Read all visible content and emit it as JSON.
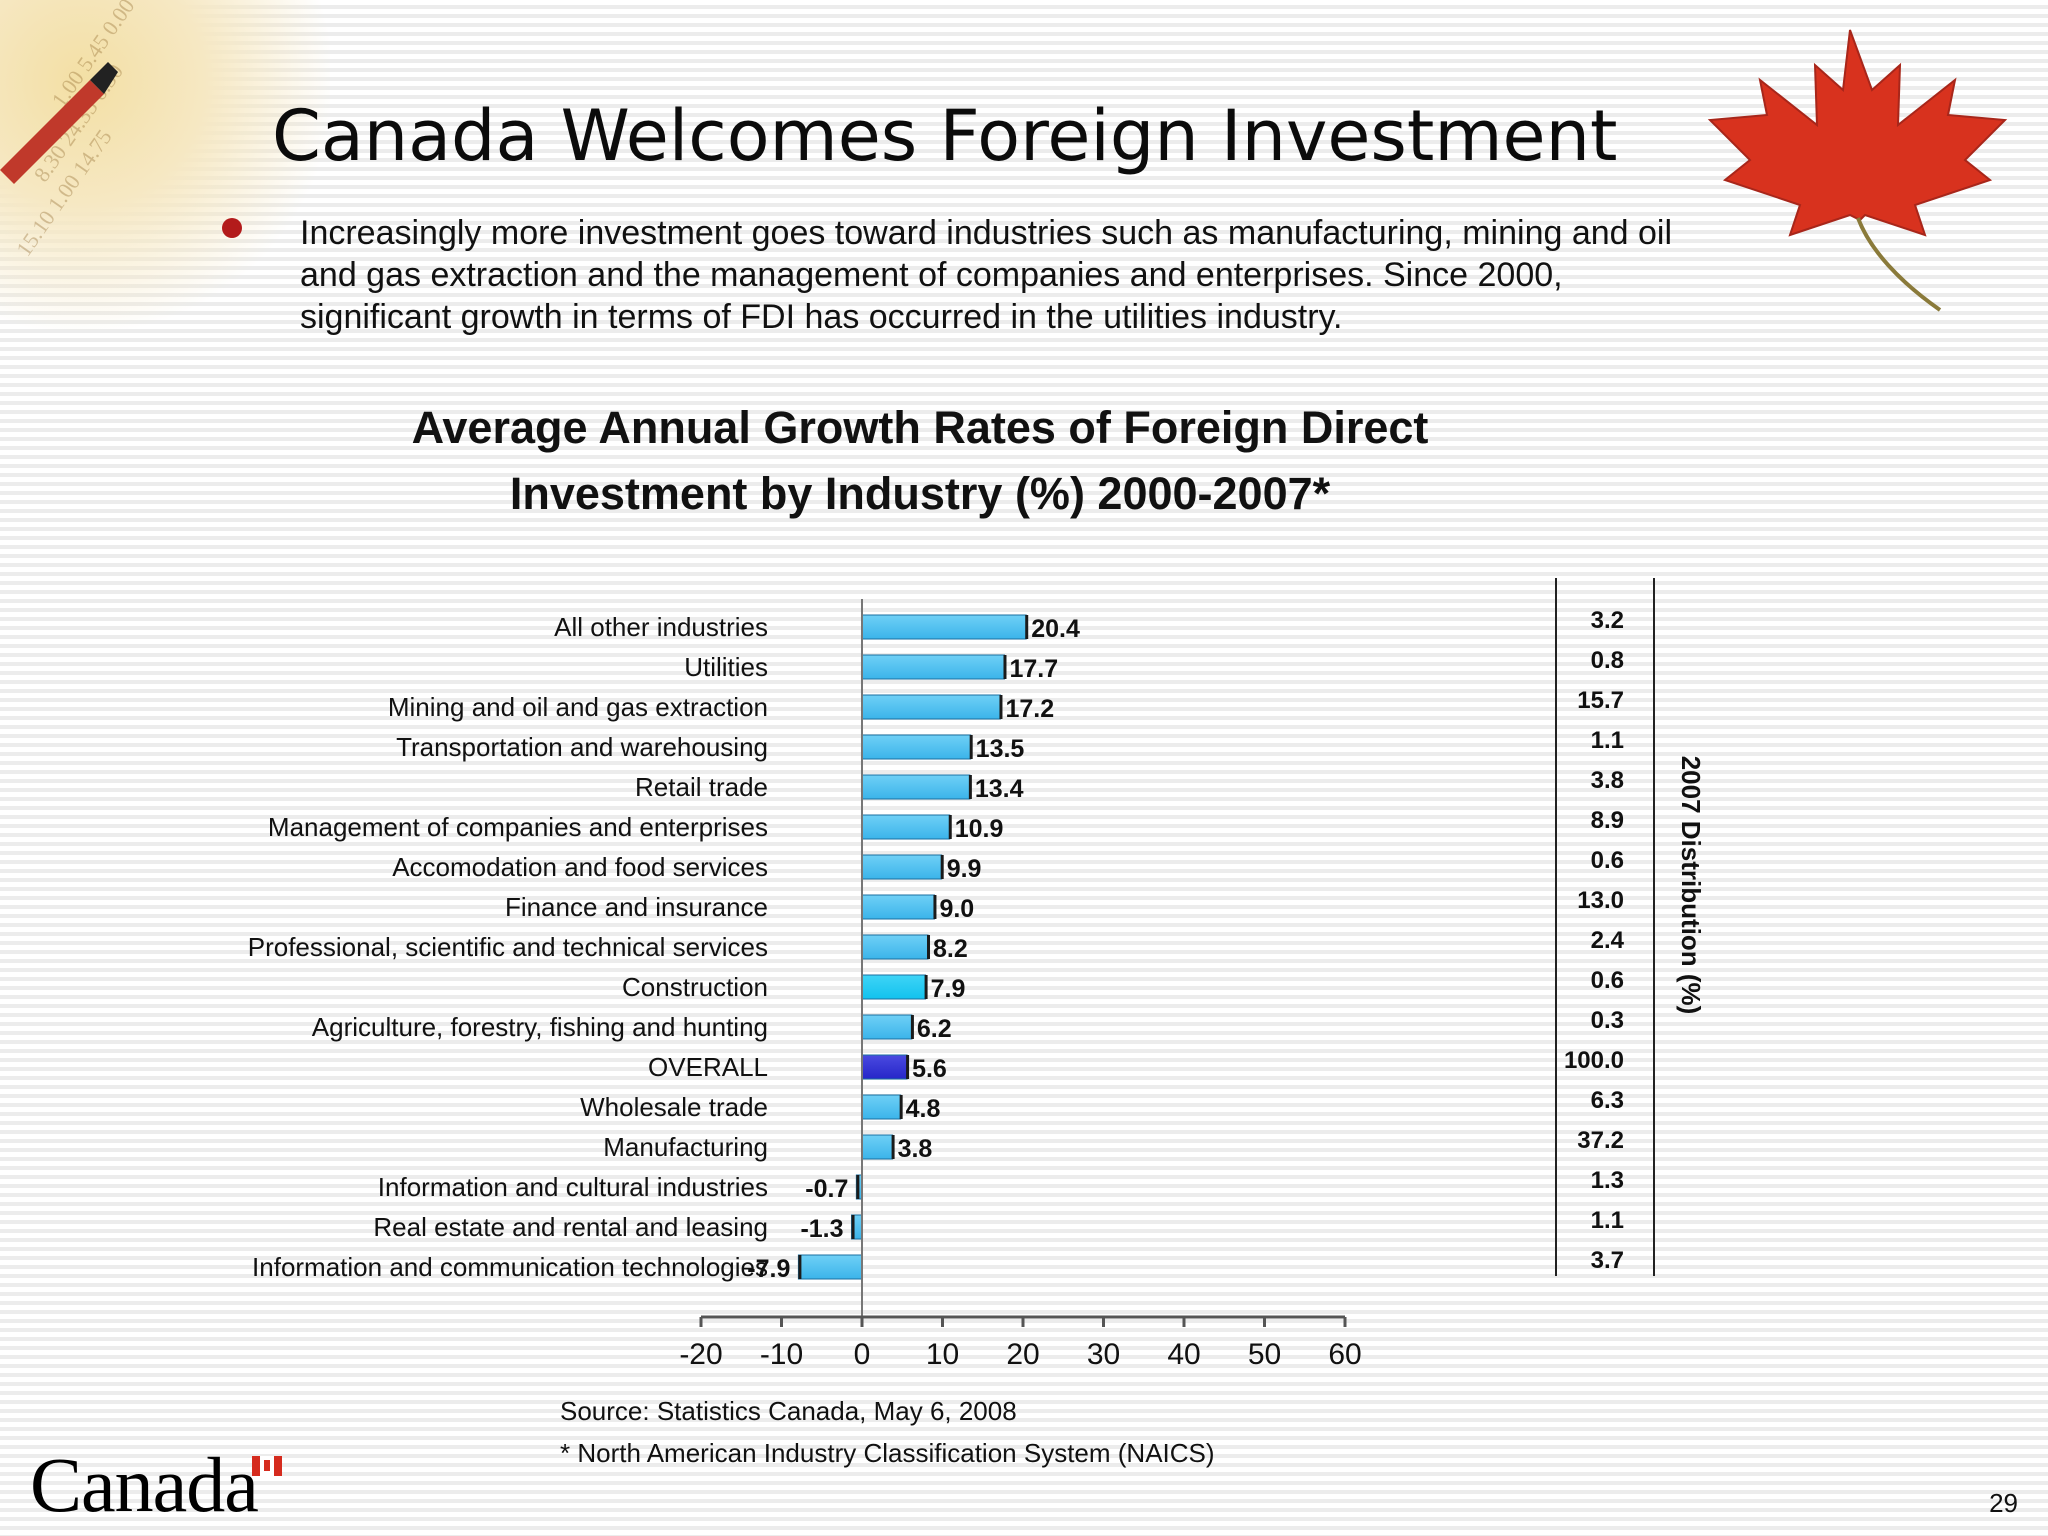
{
  "slide": {
    "title": "Canada Welcomes Foreign Investment",
    "bullet": "Increasingly more investment goes toward industries such as manufacturing, mining and oil and gas extraction and the management of companies and enterprises. Since 2000, significant growth in terms of FDI has occurred in the utilities industry.",
    "source": "Source: Statistics Canada, May 6, 2008",
    "footnote": "* North American Industry Classification System (NAICS)",
    "brand": "Canada",
    "page_number": "29",
    "bullet_color": "#b31b1b",
    "leaf_color": "#d8321e"
  },
  "chart_data": {
    "type": "bar",
    "orientation": "horizontal",
    "title": "Average Annual Growth Rates of Foreign Direct Investment by Industry (%) 2000-2007*",
    "title_lines": [
      "Average Annual Growth Rates of Foreign Direct",
      "Investment by Industry (%) 2000-2007*"
    ],
    "categories": [
      "All other industries",
      "Utilities",
      "Mining and oil and gas extraction",
      "Transportation and warehousing",
      "Retail trade",
      "Management of companies and enterprises",
      "Accomodation and food services",
      "Finance and insurance",
      "Professional, scientific and technical services",
      "Construction",
      "Agriculture, forestry, fishing and hunting",
      "OVERALL",
      "Wholesale trade",
      "Manufacturing",
      "Information and cultural industries",
      "Real estate and rental and leasing",
      "Information and communication technologies"
    ],
    "values": [
      20.4,
      17.7,
      17.2,
      13.5,
      13.4,
      10.9,
      9.9,
      9.0,
      8.2,
      7.9,
      6.2,
      5.6,
      4.8,
      3.8,
      -0.7,
      -1.3,
      -7.9
    ],
    "value_labels": [
      "20.4",
      "17.7",
      "17.2",
      "13.5",
      "13.4",
      "10.9",
      "9.9",
      "9.0",
      "8.2",
      "7.9",
      "6.2",
      "5.6",
      "4.8",
      "3.8",
      "-0.7",
      "-1.3",
      "-7.9"
    ],
    "distribution_2007": [
      "3.2",
      "0.8",
      "15.7",
      "1.1",
      "3.8",
      "8.9",
      "0.6",
      "13.0",
      "2.4",
      "0.6",
      "0.3",
      "100.0",
      "6.3",
      "37.2",
      "1.3",
      "1.1",
      "3.7"
    ],
    "distribution_label": "2007 Distribution (%)",
    "x_ticks": [
      -20,
      -10,
      0,
      10,
      20,
      30,
      40,
      50,
      60
    ],
    "xlim": [
      -20,
      60
    ],
    "highlight_category": "OVERALL",
    "colors": {
      "bar": "#3bb4ea",
      "bar_alt": "#12c2ee",
      "highlight": "#2626c9",
      "edge": "#1b1b1b"
    },
    "grid": false,
    "legend": "none"
  }
}
